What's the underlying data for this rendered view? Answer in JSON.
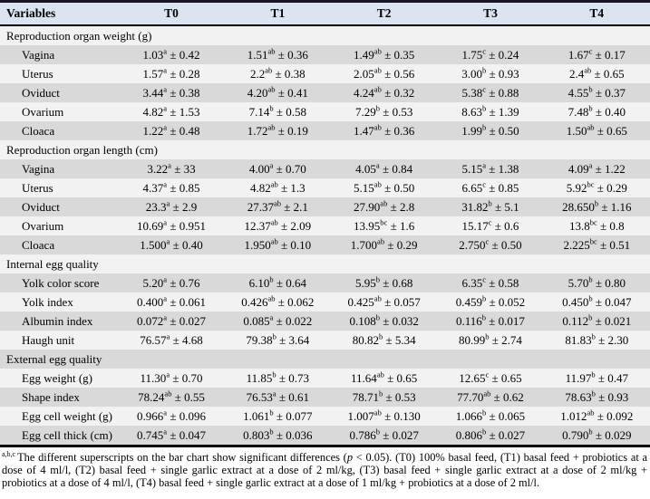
{
  "table": {
    "columns": [
      "Variables",
      "T0",
      "T1",
      "T2",
      "T3",
      "T4"
    ],
    "plus_minus": "±",
    "sections": [
      {
        "title": "Reproduction organ weight (g)",
        "rows": [
          {
            "label": "Vagina",
            "cells": [
              [
                "1.03",
                "a",
                "0.42"
              ],
              [
                "1.51",
                "ab",
                "0.36"
              ],
              [
                "1.49",
                "ab",
                "0.35"
              ],
              [
                "1.75",
                "c",
                "0.24"
              ],
              [
                "1.67",
                "c",
                "0.17"
              ]
            ]
          },
          {
            "label": "Uterus",
            "cells": [
              [
                "1.57",
                "a",
                "0.28"
              ],
              [
                "2.2",
                "ab",
                "0.38"
              ],
              [
                "2.05",
                "ab",
                "0.56"
              ],
              [
                "3.00",
                "b",
                "0.93"
              ],
              [
                "2.4",
                "ab",
                "0.65"
              ]
            ]
          },
          {
            "label": "Oviduct",
            "cells": [
              [
                "3.44",
                "a",
                "0.38"
              ],
              [
                "4.20",
                "ab",
                "0.41"
              ],
              [
                "4.24",
                "ab",
                "0.32"
              ],
              [
                "5.38",
                "c",
                "0.88"
              ],
              [
                "4.55",
                "b",
                "0.37"
              ]
            ]
          },
          {
            "label": "Ovarium",
            "cells": [
              [
                "4.82",
                "a",
                "1.53"
              ],
              [
                "7.14",
                "b",
                "0.58"
              ],
              [
                "7.29",
                "b",
                "0.53"
              ],
              [
                "8.63",
                "b",
                "1.39"
              ],
              [
                "7.48",
                "b",
                "0.40"
              ]
            ]
          },
          {
            "label": "Cloaca",
            "cells": [
              [
                "1.22",
                "a",
                "0.48"
              ],
              [
                "1.72",
                "ab",
                "0.19"
              ],
              [
                "1.47",
                "ab",
                "0.36"
              ],
              [
                "1.99",
                "b",
                "0.50"
              ],
              [
                "1.50",
                "ab",
                "0.65"
              ]
            ]
          }
        ]
      },
      {
        "title": "Reproduction organ length (cm)",
        "rows": [
          {
            "label": "Vagina",
            "cells": [
              [
                "3.22",
                "a",
                "33"
              ],
              [
                "4.00",
                "a",
                "0.70"
              ],
              [
                "4.05",
                "a",
                "0.84"
              ],
              [
                "5.15",
                "a",
                "1.38"
              ],
              [
                "4.09",
                "a",
                "1.22"
              ]
            ]
          },
          {
            "label": "Uterus",
            "cells": [
              [
                "4.37",
                "a",
                "0.85"
              ],
              [
                "4.82",
                "ab",
                "1.3"
              ],
              [
                "5.15",
                "ab",
                "0.50"
              ],
              [
                "6.65",
                "c",
                "0.85"
              ],
              [
                "5.92",
                "bc",
                "0.29"
              ]
            ]
          },
          {
            "label": "Oviduct",
            "cells": [
              [
                "23.3",
                "a",
                "2.9"
              ],
              [
                "27.37",
                "ab",
                "2.1"
              ],
              [
                "27.90",
                "ab",
                "2.8"
              ],
              [
                "31.82",
                "b",
                "5.1"
              ],
              [
                "28.650",
                "b",
                "1.16"
              ]
            ]
          },
          {
            "label": "Ovarium",
            "cells": [
              [
                "10.69",
                "a",
                "0.951"
              ],
              [
                "12.37",
                "ab",
                "2.09"
              ],
              [
                "13.95",
                "bc",
                "1.6"
              ],
              [
                "15.17",
                "c",
                "0.6"
              ],
              [
                "13.8",
                "bc",
                "0.8"
              ]
            ]
          },
          {
            "label": "Cloaca",
            "cells": [
              [
                "1.500",
                "a",
                "0.40"
              ],
              [
                "1.950",
                "ab",
                "0.10"
              ],
              [
                "1.700",
                "ab",
                "0.29"
              ],
              [
                "2.750",
                "c",
                "0.50"
              ],
              [
                "2.225",
                "bc",
                "0.51"
              ]
            ]
          }
        ]
      },
      {
        "title": "Internal egg quality",
        "rows": [
          {
            "label": "Yolk color score",
            "cells": [
              [
                "5.20",
                "a",
                "0.76"
              ],
              [
                "6.10",
                "b",
                "0.64"
              ],
              [
                "5.95",
                "b",
                "0.68"
              ],
              [
                "6.35",
                "c",
                "0.58"
              ],
              [
                "5.70",
                "b",
                "0.80"
              ]
            ]
          },
          {
            "label": "Yolk index",
            "cells": [
              [
                "0.400",
                "a",
                "0.061"
              ],
              [
                "0.426",
                "ab",
                "0.062"
              ],
              [
                "0.425",
                "ab",
                "0.057"
              ],
              [
                "0.459",
                "b",
                "0.052"
              ],
              [
                "0.450",
                "b",
                "0.047"
              ]
            ]
          },
          {
            "label": "Albumin index",
            "cells": [
              [
                "0.072",
                "a",
                "0.027"
              ],
              [
                "0.085",
                "a",
                "0.022"
              ],
              [
                "0.108",
                "b",
                "0.032"
              ],
              [
                "0.116",
                "b",
                "0.017"
              ],
              [
                "0.112",
                "b",
                "0.021"
              ]
            ]
          },
          {
            "label": "Haugh unit",
            "cells": [
              [
                "76.57",
                "a",
                "4.68"
              ],
              [
                "79.38",
                "b",
                "3.64"
              ],
              [
                "80.82",
                "b",
                "5.34"
              ],
              [
                "80.99",
                "b",
                "2.74"
              ],
              [
                "81.83",
                "b",
                "2.30"
              ]
            ]
          }
        ]
      },
      {
        "title": "External egg quality",
        "rows": [
          {
            "label": "Egg weight (g)",
            "cells": [
              [
                "11.30",
                "a",
                "0.70"
              ],
              [
                "11.85",
                "b",
                "0.73"
              ],
              [
                "11.64",
                "ab",
                "0.65"
              ],
              [
                "12.65",
                "c",
                "0.65"
              ],
              [
                "11.97",
                "b",
                "0.47"
              ]
            ]
          },
          {
            "label": "Shape index",
            "cells": [
              [
                "78.24",
                "ab",
                "0.55"
              ],
              [
                "76.53",
                "a",
                "0.61"
              ],
              [
                "78.71",
                "b",
                "0.53"
              ],
              [
                "77.70",
                "ab",
                "0.62"
              ],
              [
                "78.63",
                "b",
                "0.93"
              ]
            ]
          },
          {
            "label": "Egg cell weight (g)",
            "cells": [
              [
                "0.966",
                "a",
                "0.096"
              ],
              [
                "1.061",
                "b",
                "0.077"
              ],
              [
                "1.007",
                "ab",
                "0.130"
              ],
              [
                "1.066",
                "b",
                "0.065"
              ],
              [
                "1.012",
                "ab",
                "0.092"
              ]
            ]
          },
          {
            "label": "Egg cell thick (cm)",
            "cells": [
              [
                "0.745",
                "a",
                "0.047"
              ],
              [
                "0.803",
                "b",
                "0.036"
              ],
              [
                "0.786",
                "b",
                "0.027"
              ],
              [
                "0.806",
                "b",
                "0.027"
              ],
              [
                "0.790",
                "b",
                "0.029"
              ]
            ]
          }
        ]
      }
    ]
  },
  "footnote": {
    "marker": "a,b,c",
    "pre": "The different superscripts on the bar chart show significant differences (",
    "p_symbol": "p",
    "post": " < 0.05). (T0) 100% basal feed, (T1) basal feed + probiotics at a dose of 4 ml/l, (T2) basal feed + single garlic extract at a dose of 2 ml/kg, (T3) basal feed + single garlic extract at a dose of 2 ml/kg + probiotics at a dose of 4 ml/l, (T4) basal feed + single garlic extract at a dose of 1 ml/kg + probiotics at a dose of 2 ml/l."
  },
  "colors": {
    "header_bg": "#dbe5f1",
    "stripe_light": "#f2f2f2",
    "stripe_dark": "#d9d9d9",
    "top_border": "#171724",
    "border_black": "#000000"
  }
}
